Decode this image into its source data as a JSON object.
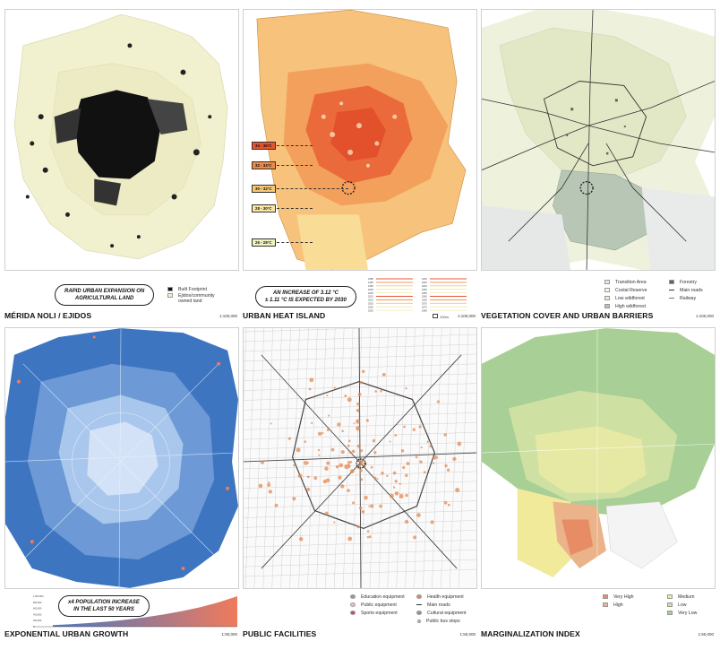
{
  "panels": {
    "noli": {
      "title": "MÉRIDA NOLI / EJIDOS",
      "scale": "1:100,000",
      "callout": [
        "RAPID URBAN EXPANSION ON",
        "AGRICULTURAL LAND"
      ],
      "legend": [
        {
          "label": "Built Footprint",
          "color": "#111111"
        },
        {
          "label": "Ejidos/community owned land",
          "color": "#f1f0cf"
        }
      ]
    },
    "heat": {
      "title": "URBAN HEAT ISLAND",
      "scale": "1:100,000",
      "callout": [
        "AN INCREASE OF 3.12 °C",
        "± 1.11 °C IS EXPECTED BY 2030"
      ],
      "temps": [
        "34 - 36°C",
        "32 - 34°C",
        "30 - 32°C",
        "28 - 30°C",
        "26 - 28°C"
      ],
      "temp_colors": [
        "#e9542f",
        "#f08a43",
        "#f7c774",
        "#f9e6a3",
        "#eef2c0"
      ],
      "years_left": [
        "1985",
        "1990",
        "1995",
        "2000",
        "2005",
        "2010",
        "2015",
        "2020",
        "2025",
        "2030"
      ],
      "years_right": [
        "2035",
        "2040",
        "2045",
        "2050",
        "2055",
        "2060",
        "2065",
        "2070",
        "2075",
        "2080"
      ],
      "unit_note": "100m"
    },
    "vegetation": {
      "title": "VEGETATION COVER AND URBAN BARRIERS",
      "scale": "1:100,000",
      "legend_left": [
        {
          "label": "Transition Area",
          "color": "#e6e7e2"
        },
        {
          "label": "Costal Reserve",
          "color": "#f6f6ec"
        },
        {
          "label": "Low wildforest",
          "color": "#e6ecc9"
        },
        {
          "label": "High wildforest",
          "color": "#b5c3b4"
        }
      ],
      "legend_right": [
        {
          "label": "Forestry",
          "color": "#4f6b5a"
        },
        {
          "label": "Main roads",
          "color": "#333333"
        },
        {
          "label": "Railway",
          "color": "#777777"
        }
      ]
    },
    "growth": {
      "title": "EXPONENTIAL URBAN GROWTH",
      "scale": "1:50,000",
      "callout": [
        "x4 POPULATION INCREASE",
        "IN THE LAST 50 YEARS"
      ]
    },
    "facilities": {
      "title": "PUBLIC FACILITIES",
      "scale": "1:50,000",
      "legend_left": [
        {
          "label": "Education equipment",
          "color": "#9a9a9a"
        },
        {
          "label": "Public equipment",
          "color": "#f3c1b5"
        },
        {
          "label": "Sports equipment",
          "color": "#c94b5c"
        }
      ],
      "legend_right": [
        {
          "label": "Health equipment",
          "color": "#e48a52"
        },
        {
          "label": "Main roads",
          "color": "#333333"
        },
        {
          "label": "Cultural equipment",
          "color": "#7f9aa3"
        },
        {
          "label": "Public bus stops",
          "color": "#bbbbbb"
        }
      ]
    },
    "marginal": {
      "title": "MARGINALIZATION INDEX",
      "scale": "1:50,000",
      "legend_left": [
        {
          "label": "Very High",
          "color": "#e78c64"
        },
        {
          "label": "High",
          "color": "#eab38a"
        }
      ],
      "legend_right": [
        {
          "label": "Medium",
          "color": "#f1ea9b"
        },
        {
          "label": "Low",
          "color": "#cfe0a3"
        },
        {
          "label": "Very Low",
          "color": "#a8cf96"
        }
      ]
    }
  },
  "chart_data": {
    "type": "area",
    "title": "",
    "x": [
      0,
      1,
      2,
      3,
      4,
      5,
      6,
      7,
      8,
      9,
      10
    ],
    "values": [
      0.05,
      0.08,
      0.12,
      0.17,
      0.23,
      0.31,
      0.4,
      0.51,
      0.64,
      0.8,
      1.0
    ],
    "y_ticks": [
      "1,000,000",
      "800,000",
      "600,000",
      "400,000",
      "200,000",
      "0"
    ],
    "colors": {
      "start": "#4a78c2",
      "end": "#f07a5c"
    }
  }
}
